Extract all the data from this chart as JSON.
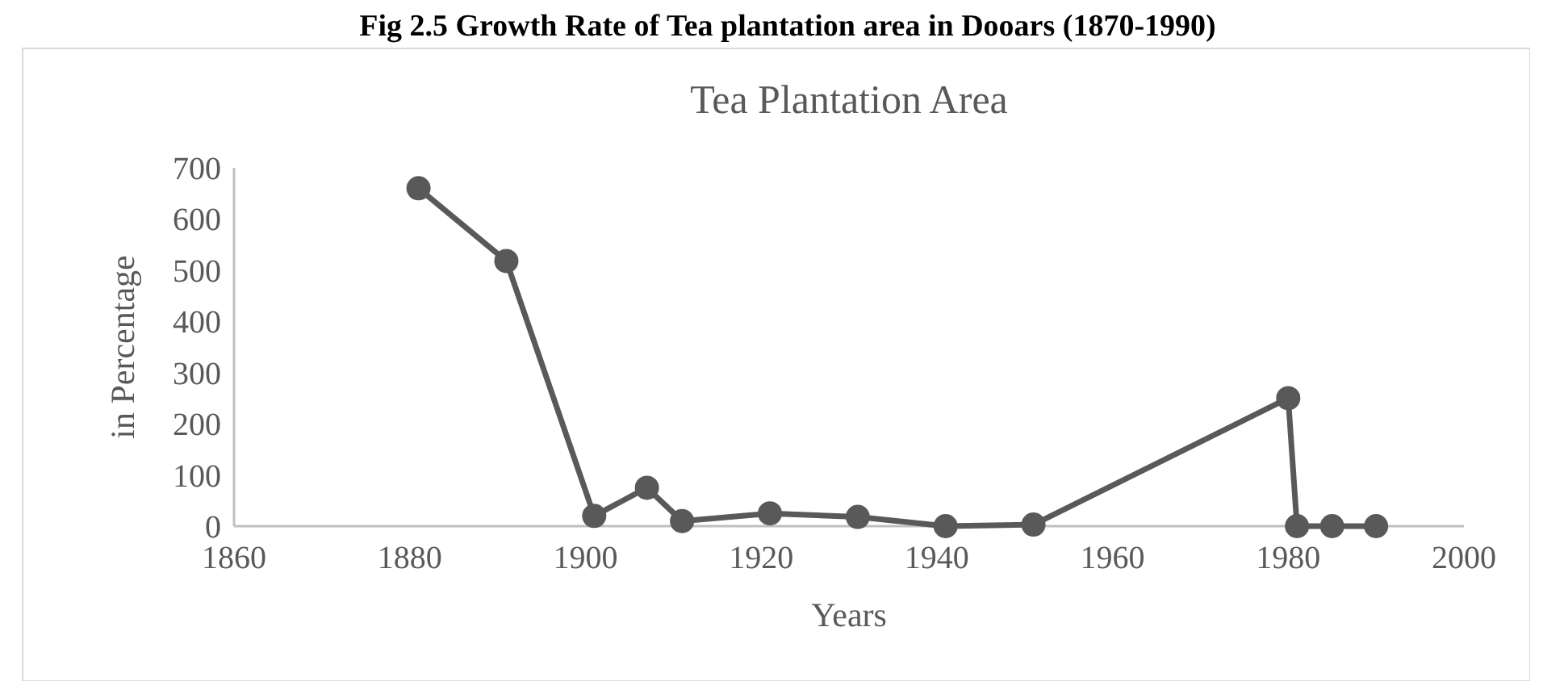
{
  "chart_data": {
    "type": "line",
    "title": "Fig 2.5 Growth Rate of Tea plantation area in Dooars (1870-1990)",
    "subtitle": "Tea Plantation Area",
    "xlabel": "Years",
    "ylabel": "in Percentage",
    "x": [
      1881,
      1891,
      1901,
      1907,
      1911,
      1921,
      1931,
      1941,
      1951,
      1980,
      1981,
      1985,
      1990
    ],
    "series": [
      {
        "color": "#595959",
        "values": [
          660,
          518,
          20,
          75,
          10,
          25,
          18,
          0,
          3,
          250,
          0,
          0,
          0
        ]
      }
    ],
    "xlim": [
      1860,
      2000
    ],
    "xticks": [
      1860,
      1880,
      1900,
      1920,
      1940,
      1960,
      1980,
      2000
    ],
    "ylim": [
      0,
      700
    ],
    "yticks": [
      0,
      100,
      200,
      300,
      400,
      500,
      600,
      700
    ],
    "grid": false,
    "marker": "circle",
    "line_style": "solid"
  }
}
